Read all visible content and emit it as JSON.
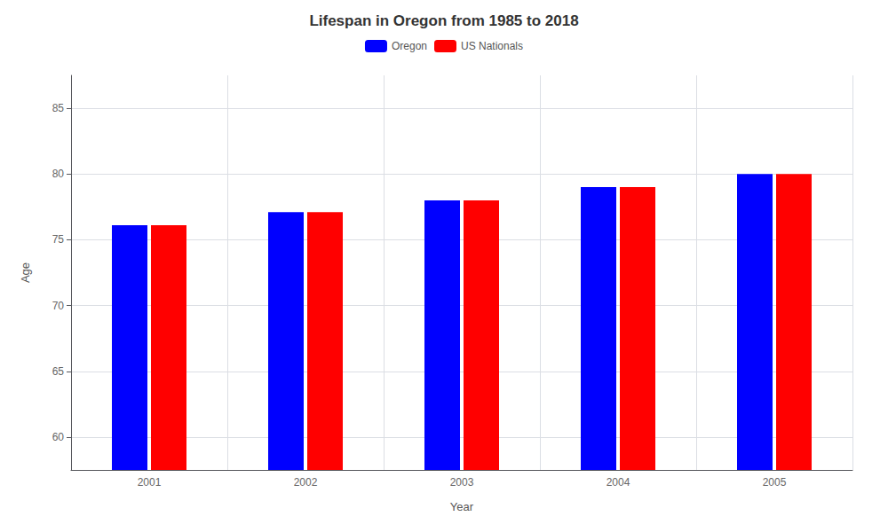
{
  "chart_data": {
    "type": "bar",
    "title": "Lifespan in Oregon from 1985 to 2018",
    "xlabel": "Year",
    "ylabel": "Age",
    "categories": [
      "2001",
      "2002",
      "2003",
      "2004",
      "2005"
    ],
    "series": [
      {
        "name": "Oregon",
        "color": "#0000ff",
        "values": [
          76.1,
          77.1,
          78.0,
          79.0,
          80.0
        ]
      },
      {
        "name": "US Nationals",
        "color": "#ff0000",
        "values": [
          76.1,
          77.1,
          78.0,
          79.0,
          80.0
        ]
      }
    ],
    "ylim": [
      57.5,
      87.5
    ],
    "yticks": [
      60,
      65,
      70,
      75,
      80,
      85
    ],
    "grid": true,
    "legend": "top"
  }
}
